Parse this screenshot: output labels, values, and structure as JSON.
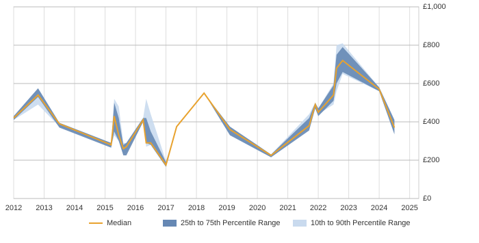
{
  "chart_data": {
    "type": "line",
    "x": [
      2012.0,
      2012.8,
      2013.5,
      2015.2,
      2015.3,
      2015.45,
      2015.6,
      2015.7,
      2016.25,
      2016.35,
      2016.5,
      2017.0,
      2017.35,
      2018.25,
      2019.1,
      2020.45,
      2021.7,
      2021.9,
      2022.0,
      2022.5,
      2022.6,
      2022.8,
      2024.0,
      2024.5
    ],
    "series": [
      {
        "name": "Median",
        "color": "#e8a22e",
        "values": [
          420,
          540,
          390,
          280,
          430,
          330,
          260,
          270,
          410,
          290,
          290,
          175,
          375,
          550,
          360,
          225,
          380,
          490,
          450,
          540,
          680,
          720,
          570,
          370
        ]
      }
    ],
    "bands": [
      {
        "name": "10th to 90th Percentile Range",
        "color": "#c9daee",
        "low": [
          410,
          490,
          375,
          270,
          330,
          300,
          230,
          240,
          400,
          270,
          280,
          165,
          375,
          550,
          335,
          215,
          370,
          470,
          440,
          490,
          560,
          650,
          560,
          340
        ],
        "high": [
          430,
          575,
          395,
          290,
          520,
          480,
          290,
          290,
          420,
          520,
          440,
          195,
          375,
          550,
          375,
          230,
          440,
          500,
          470,
          600,
          800,
          810,
          580,
          410
        ]
      },
      {
        "name": "25th to 75th Percentile Range",
        "color": "#6688b4",
        "low": [
          410,
          530,
          370,
          265,
          350,
          300,
          225,
          225,
          400,
          290,
          280,
          165,
          375,
          550,
          330,
          215,
          355,
          470,
          430,
          510,
          600,
          660,
          560,
          335
        ],
        "high": [
          430,
          575,
          395,
          290,
          500,
          420,
          280,
          290,
          420,
          420,
          350,
          190,
          375,
          550,
          375,
          230,
          420,
          500,
          470,
          590,
          750,
          790,
          580,
          410
        ]
      }
    ],
    "xlim": [
      2012,
      2025.3
    ],
    "xticks": [
      2012,
      2013,
      2014,
      2015,
      2016,
      2017,
      2018,
      2019,
      2020,
      2021,
      2022,
      2023,
      2024,
      2025
    ],
    "ylim": [
      0,
      1000
    ],
    "yticks": [
      {
        "value": 0,
        "label": "£0"
      },
      {
        "value": 200,
        "label": "£200"
      },
      {
        "value": 400,
        "label": "£400"
      },
      {
        "value": 600,
        "label": "£600"
      },
      {
        "value": 800,
        "label": "£800"
      },
      {
        "value": 1000,
        "label": "£1,000"
      }
    ],
    "grid": true
  }
}
